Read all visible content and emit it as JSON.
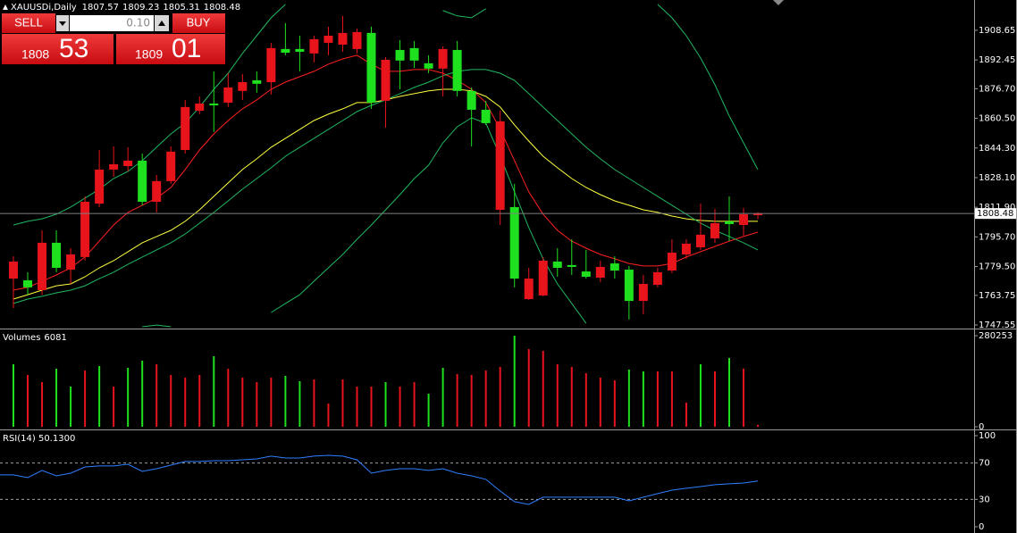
{
  "chart_data": [
    {
      "type": "candlestick",
      "title": "XAUUSDi,Daily",
      "open": [
        1772.9,
        1772.0,
        1766.6,
        1792.5,
        1777.8,
        1784.7,
        1813.9,
        1832.5,
        1834.4,
        1837.4,
        1814.9,
        1826.2,
        1843.2,
        1864.7,
        1868.6,
        1869.1,
        1875.5,
        1881.3,
        1880.3,
        1898.4,
        1898.4,
        1896.0,
        1901.8,
        1900.8,
        1898.4,
        1907.2,
        1870.1,
        1897.9,
        1898.9,
        1890.6,
        1887.7,
        1897.9,
        1875.5,
        1865.2,
        1810.5,
        1812.0,
        1761.7,
        1763.7,
        1782.2,
        1780.3,
        1776.8,
        1773.4,
        1781.2,
        1777.8,
        1760.7,
        1769.5,
        1777.3,
        1786.1,
        1790.0,
        1794.9,
        1804.2,
        1802.2,
        1807.57
      ],
      "high": [
        1785.1,
        1776.4,
        1799.3,
        1799.3,
        1789.5,
        1817.9,
        1843.2,
        1845.2,
        1844.7,
        1841.3,
        1829.6,
        1845.2,
        1870.6,
        1872.5,
        1886.2,
        1885.2,
        1884.7,
        1886.2,
        1901.8,
        1912.6,
        1905.7,
        1905.7,
        1910.6,
        1916.5,
        1909.6,
        1910.6,
        1894.0,
        1903.3,
        1902.8,
        1895.0,
        1899.9,
        1902.8,
        1877.4,
        1870.1,
        1864.7,
        1824.7,
        1778.8,
        1784.7,
        1789.5,
        1794.4,
        1788.6,
        1782.7,
        1785.1,
        1779.8,
        1774.9,
        1778.8,
        1794.4,
        1794.4,
        1813.9,
        1811.0,
        1817.9,
        1811.5,
        1809.23
      ],
      "low": [
        1756.8,
        1764.1,
        1764.1,
        1776.4,
        1770.0,
        1782.7,
        1812.0,
        1828.6,
        1831.5,
        1813.0,
        1809.1,
        1824.7,
        1841.3,
        1862.8,
        1853.0,
        1866.7,
        1870.6,
        1874.5,
        1873.5,
        1895.0,
        1886.2,
        1891.1,
        1895.0,
        1896.9,
        1896.0,
        1865.7,
        1855.4,
        1876.4,
        1888.1,
        1885.2,
        1872.5,
        1872.5,
        1845.2,
        1856.9,
        1802.2,
        1768.1,
        1761.2,
        1763.2,
        1773.9,
        1774.9,
        1772.9,
        1771.0,
        1772.9,
        1750.5,
        1753.4,
        1768.1,
        1775.9,
        1783.7,
        1788.6,
        1792.5,
        1793.4,
        1796.4,
        1805.31
      ],
      "close": [
        1782.2,
        1768.1,
        1792.5,
        1778.8,
        1786.1,
        1814.9,
        1832.5,
        1835.4,
        1837.4,
        1814.9,
        1826.2,
        1842.3,
        1866.7,
        1868.6,
        1867.6,
        1877.4,
        1880.3,
        1879.4,
        1898.9,
        1896.4,
        1896.9,
        1903.8,
        1905.7,
        1907.2,
        1907.7,
        1869.1,
        1892.5,
        1892.1,
        1892.1,
        1887.7,
        1898.4,
        1875.5,
        1865.2,
        1857.9,
        1858.9,
        1772.9,
        1772.9,
        1782.7,
        1778.8,
        1779.3,
        1773.9,
        1779.3,
        1777.3,
        1760.7,
        1770.0,
        1776.4,
        1787.1,
        1792.0,
        1796.9,
        1803.2,
        1802.7,
        1808.1,
        1808.48
      ],
      "up_color": "#e8141c",
      "down_color": "#1ee01e",
      "overlays": [
        {
          "color": "#ff2020",
          "values": [
            1766.6,
            1768.1,
            1771.5,
            1774.9,
            1778.8,
            1784.7,
            1793.4,
            1802.2,
            1809.1,
            1813.0,
            1816.9,
            1822.7,
            1832.5,
            1843.2,
            1852.0,
            1859.3,
            1865.7,
            1870.6,
            1876.4,
            1880.3,
            1883.3,
            1886.2,
            1890.1,
            1893.0,
            1895.0,
            1890.1,
            1886.2,
            1886.2,
            1887.2,
            1887.2,
            1885.2,
            1881.3,
            1876.4,
            1869.1,
            1854.5,
            1837.4,
            1820.3,
            1808.1,
            1799.3,
            1793.4,
            1789.5,
            1786.1,
            1783.7,
            1781.2,
            1779.8,
            1779.8,
            1781.2,
            1784.7,
            1787.6,
            1790.5,
            1793.4,
            1795.9,
            1798.3
          ]
        },
        {
          "color": "#ffff40",
          "values": [
            1761.7,
            1764.1,
            1766.6,
            1769.0,
            1770.0,
            1773.9,
            1778.8,
            1782.7,
            1787.6,
            1792.5,
            1795.9,
            1799.3,
            1804.2,
            1810.5,
            1817.9,
            1825.2,
            1832.5,
            1838.4,
            1844.7,
            1849.6,
            1854.5,
            1859.3,
            1862.8,
            1865.7,
            1869.1,
            1869.1,
            1870.6,
            1872.5,
            1874.0,
            1875.5,
            1876.4,
            1876.4,
            1875.5,
            1872.5,
            1866.7,
            1856.9,
            1848.1,
            1839.8,
            1833.5,
            1827.6,
            1822.7,
            1818.8,
            1815.4,
            1813.0,
            1810.5,
            1809.1,
            1807.1,
            1805.6,
            1804.7,
            1804.2,
            1804.2,
            1804.2,
            1804.2
          ]
        },
        {
          "color": "#20b860",
          "values": [
            1802.2,
            1804.2,
            1805.6,
            1808.1,
            1812.0,
            1816.9,
            1821.8,
            1827.6,
            1831.5,
            1837.4,
            1844.7,
            1852.0,
            1857.9,
            1866.7,
            1876.4,
            1885.2,
            1896.0,
            1905.7,
            1915.5,
            1922.8,
            null,
            null,
            null,
            null,
            null,
            null,
            null,
            null,
            null,
            null,
            1919.4,
            1916.5,
            1915.5,
            1920.4,
            null,
            null,
            null,
            null,
            null,
            null,
            null,
            null,
            null,
            null,
            null,
            1922.8,
            1915.5,
            1905.7,
            1893.5,
            1878.9,
            1861.8,
            1847.1,
            1832.5
          ]
        },
        {
          "color": "#20b860",
          "values": [
            1759.3,
            1761.7,
            1763.2,
            1765.1,
            1766.6,
            1769.0,
            1772.9,
            1776.4,
            1780.7,
            1784.7,
            1788.6,
            1792.5,
            1797.3,
            1803.2,
            1809.1,
            1815.4,
            1821.8,
            1827.6,
            1833.5,
            1839.8,
            1844.7,
            1849.6,
            1854.5,
            1859.3,
            1864.2,
            1867.6,
            1870.6,
            1874.0,
            1877.4,
            1880.3,
            1883.8,
            1886.2,
            1887.2,
            1887.2,
            1885.2,
            1881.3,
            1874.0,
            1866.7,
            1859.3,
            1852.0,
            1844.7,
            1838.4,
            1832.5,
            1827.6,
            1822.7,
            1817.9,
            1813.0,
            1808.1,
            1803.2,
            1799.3,
            1795.9,
            1792.5,
            1788.6
          ]
        },
        {
          "color": "#20b860",
          "values": [
            null,
            null,
            null,
            null,
            null,
            null,
            null,
            null,
            null,
            1746.6,
            1747.5,
            1746.6,
            null,
            null,
            null,
            null,
            null,
            null,
            1754.4,
            1759.3,
            1764.1,
            1771.5,
            1778.8,
            1786.1,
            1794.4,
            1802.2,
            1810.5,
            1818.8,
            1827.6,
            1834.9,
            1847.1,
            1855.9,
            1860.8,
            1857.9,
            1839.8,
            1820.3,
            1800.8,
            1783.7,
            1770.0,
            1759.3,
            1748.5,
            null,
            null,
            null,
            null,
            null,
            null,
            null,
            null,
            null,
            null,
            null,
            null
          ]
        }
      ],
      "ylim": [
        1745.6,
        1925.2
      ],
      "yticks": [
        1908.65,
        1892.45,
        {
          "value": 1876.7,
          "label": "1876.70"
        },
        {
          "value": 1860.5,
          "label": "1860.50"
        },
        {
          "value": 1844.3,
          "label": "1844.30"
        },
        {
          "value": 1828.1,
          "label": "1828.10"
        },
        {
          "value": 1811.9,
          "label": "1811.90"
        },
        {
          "value": 1795.7,
          "label": "1795.70"
        },
        {
          "value": 1779.5,
          "label": "1779.50"
        },
        1763.75,
        1747.55
      ],
      "price_line_color": "#808080"
    },
    {
      "type": "bar",
      "title": "Volumes",
      "values": [
        192300,
        159400,
        137400,
        178600,
        123600,
        173100,
        186800,
        123600,
        181300,
        203300,
        192300,
        159400,
        151100,
        159400,
        217100,
        178600,
        151100,
        137400,
        151100,
        156600,
        140100,
        145600,
        71400,
        145600,
        123600,
        123600,
        137400,
        123600,
        137400,
        101700,
        181300,
        162100,
        159400,
        173100,
        184100,
        280253,
        239000,
        233500,
        192300,
        184100,
        164900,
        151100,
        142900,
        175800,
        170400,
        170400,
        170400,
        74200,
        192300,
        170400,
        211600,
        178600,
        6081
      ],
      "colors": [
        "#1ee01e",
        "#e8141c",
        "#e8141c",
        "#1ee01e",
        "#1ee01e",
        "#e8141c",
        "#1ee01e",
        "#e8141c",
        "#1ee01e",
        "#1ee01e",
        "#e8141c",
        "#e8141c",
        "#e8141c",
        "#e8141c",
        "#1ee01e",
        "#e8141c",
        "#e8141c",
        "#e8141c",
        "#e8141c",
        "#1ee01e",
        "#1ee01e",
        "#e8141c",
        "#e8141c",
        "#e8141c",
        "#e8141c",
        "#e8141c",
        "#1ee01e",
        "#e8141c",
        "#e8141c",
        "#1ee01e",
        "#1ee01e",
        "#e8141c",
        "#e8141c",
        "#e8141c",
        "#e8141c",
        "#1ee01e",
        "#e8141c",
        "#e8141c",
        "#e8141c",
        "#e8141c",
        "#e8141c",
        "#e8141c",
        "#e8141c",
        "#1ee01e",
        "#1ee01e",
        "#e8141c",
        "#e8141c",
        "#e8141c",
        "#1ee01e",
        "#e8141c",
        "#1ee01e",
        "#e8141c",
        "#e8141c"
      ],
      "ylim": [
        0,
        296700
      ],
      "yticks": [
        0,
        280253
      ]
    },
    {
      "type": "line",
      "title": "RSI(14) 50.1300",
      "values": [
        56.9,
        53.9,
        61.8,
        55.9,
        58.8,
        65.7,
        66.7,
        66.7,
        68.6,
        60.8,
        63.7,
        67.6,
        71.6,
        71.6,
        72.5,
        72.5,
        73.5,
        74.5,
        77.5,
        75.5,
        75.5,
        77.5,
        78.4,
        77.5,
        73.5,
        58.8,
        61.8,
        63.7,
        63.7,
        61.8,
        63.7,
        58.8,
        55.9,
        52.0,
        39.2,
        27.5,
        24.5,
        32.4,
        32.4,
        32.4,
        32.4,
        32.4,
        32.4,
        28.4,
        32.4,
        36.3,
        40.2,
        42.2,
        44.1,
        46.1,
        47.1,
        48.0,
        50.13
      ],
      "color": "#2f7fff",
      "ylim": [
        -6.9,
        103.9
      ],
      "yticks": [
        0,
        30,
        70,
        100
      ],
      "levels": [
        30,
        70
      ]
    }
  ],
  "trade_panel": {
    "sell": "SELL",
    "buy": "BUY",
    "volume": "0.10",
    "sell_price_main": "1808",
    "sell_price_pips": "53",
    "buy_price_main": "1809",
    "buy_price_pips": "01"
  }
}
